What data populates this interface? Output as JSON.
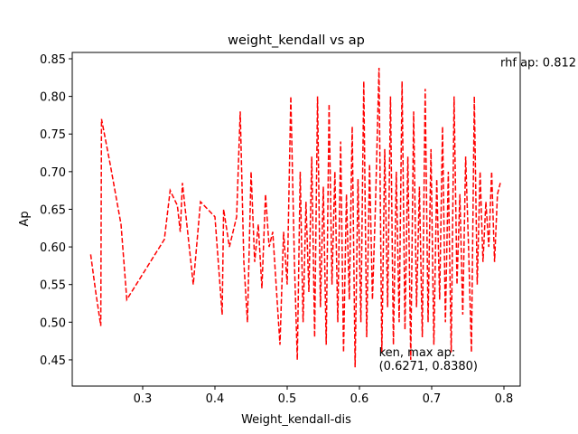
{
  "chart_data": {
    "type": "line",
    "title": "weight_kendall vs ap",
    "x_label": "Weight_kendall-dis",
    "y_label": "Ap",
    "xlim": [
      0.2025,
      0.8225
    ],
    "ylim": [
      0.4151,
      0.8584
    ],
    "xticks": [
      0.3,
      0.4,
      0.5,
      0.6,
      0.7,
      0.8
    ],
    "yticks": [
      0.45,
      {
        "value": 0.5,
        "label": "0.50"
      },
      0.55,
      {
        "value": 0.6,
        "label": "0.60"
      },
      0.65,
      {
        "value": 0.7,
        "label": "0.70"
      },
      0.75,
      {
        "value": 0.8,
        "label": "0.80"
      },
      0.85
    ],
    "grid": false,
    "annotations": [
      {
        "text": [
          "rhf ap: 0.812"
        ],
        "x": 0.795,
        "y": 0.84
      },
      {
        "text": [
          "ken, max ap:",
          " (0.6271, 0.8380)"
        ],
        "x": 0.627,
        "y": 0.455
      }
    ],
    "series": [
      {
        "name": "ken",
        "color": "#ff0000",
        "x": [
          0.228,
          0.235,
          0.242,
          0.243,
          0.255,
          0.27,
          0.278,
          0.33,
          0.338,
          0.348,
          0.352,
          0.355,
          0.37,
          0.38,
          0.4,
          0.41,
          0.412,
          0.42,
          0.43,
          0.435,
          0.44,
          0.445,
          0.45,
          0.455,
          0.46,
          0.465,
          0.47,
          0.475,
          0.48,
          0.49,
          0.495,
          0.5,
          0.505,
          0.51,
          0.514,
          0.518,
          0.522,
          0.526,
          0.53,
          0.534,
          0.538,
          0.542,
          0.546,
          0.55,
          0.554,
          0.558,
          0.562,
          0.566,
          0.57,
          0.574,
          0.578,
          0.582,
          0.586,
          0.59,
          0.594,
          0.598,
          0.602,
          0.606,
          0.61,
          0.614,
          0.618,
          0.622,
          0.6271,
          0.631,
          0.635,
          0.639,
          0.643,
          0.647,
          0.651,
          0.655,
          0.659,
          0.663,
          0.667,
          0.671,
          0.675,
          0.679,
          0.683,
          0.687,
          0.691,
          0.695,
          0.699,
          0.703,
          0.707,
          0.711,
          0.715,
          0.719,
          0.723,
          0.727,
          0.731,
          0.735,
          0.739,
          0.743,
          0.747,
          0.751,
          0.755,
          0.759,
          0.763,
          0.767,
          0.771,
          0.775,
          0.779,
          0.783,
          0.787,
          0.791,
          0.795
        ],
        "values": [
          0.59,
          0.54,
          0.495,
          0.77,
          0.71,
          0.63,
          0.53,
          0.61,
          0.675,
          0.655,
          0.62,
          0.685,
          0.55,
          0.66,
          0.64,
          0.51,
          0.65,
          0.6,
          0.64,
          0.78,
          0.58,
          0.5,
          0.7,
          0.58,
          0.63,
          0.545,
          0.67,
          0.6,
          0.62,
          0.47,
          0.62,
          0.55,
          0.8,
          0.58,
          0.45,
          0.7,
          0.5,
          0.66,
          0.54,
          0.72,
          0.48,
          0.8,
          0.52,
          0.68,
          0.47,
          0.79,
          0.55,
          0.7,
          0.5,
          0.74,
          0.46,
          0.67,
          0.53,
          0.76,
          0.44,
          0.69,
          0.5,
          0.82,
          0.48,
          0.71,
          0.53,
          0.65,
          0.838,
          0.46,
          0.73,
          0.52,
          0.8,
          0.47,
          0.7,
          0.5,
          0.82,
          0.49,
          0.72,
          0.45,
          0.78,
          0.52,
          0.68,
          0.48,
          0.81,
          0.5,
          0.73,
          0.47,
          0.69,
          0.53,
          0.76,
          0.5,
          0.7,
          0.46,
          0.8,
          0.55,
          0.67,
          0.51,
          0.72,
          0.6,
          0.46,
          0.8,
          0.55,
          0.7,
          0.58,
          0.66,
          0.6,
          0.7,
          0.58,
          0.67,
          0.685
        ]
      }
    ]
  }
}
